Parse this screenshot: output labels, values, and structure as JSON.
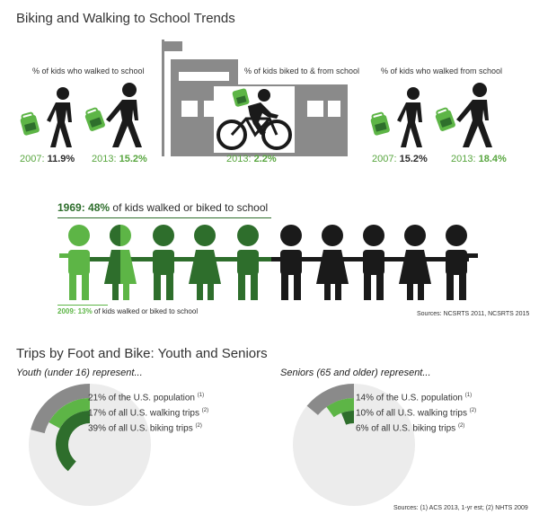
{
  "header": {
    "title": "Biking and Walking to School Trends"
  },
  "walked_to": {
    "label": "% of kids who walked to school",
    "y2007_label": "2007:",
    "y2007_value": "11.9%",
    "y2013_label": "2013:",
    "y2013_value": "15.2%"
  },
  "biked": {
    "label": "% of kids biked to & from school",
    "y2013_label": "2013:",
    "y2013_value": "2.2%"
  },
  "walked_from": {
    "label": "% of kids who walked from school",
    "y2007_label": "2007:",
    "y2007_value": "15.2%",
    "y2013_label": "2013:",
    "y2013_value": "18.4%"
  },
  "historic": {
    "y1969_label": "1969:",
    "y1969_value": "48%",
    "y1969_text": " of kids walked or biked to school",
    "y2009_label": "2009: 13%",
    "y2009_text": " of kids walked or biked to school",
    "sources": "Sources: NCSRTS 2011, NCSRTS 2015"
  },
  "trips": {
    "title": "Trips by Foot and Bike: Youth and Seniors",
    "youth": {
      "label": "Youth (under 16) represent...",
      "stats": [
        {
          "text": "21% of the U.S. population",
          "ref": "(1)"
        },
        {
          "text": "17% of all U.S. walking trips",
          "ref": "(2)"
        },
        {
          "text": "39% of all U.S. biking trips",
          "ref": "(2)"
        }
      ]
    },
    "seniors": {
      "label": "Seniors (65 and older) represent...",
      "stats": [
        {
          "text": "14% of the U.S. population",
          "ref": "(1)"
        },
        {
          "text": "10% of all U.S. walking trips",
          "ref": "(2)"
        },
        {
          "text": "6% of all U.S. biking trips",
          "ref": "(2)"
        }
      ]
    },
    "sources": "Sources: (1) ACS 2013, 1-yr est; (2) NHTS 2009"
  },
  "colors": {
    "dark_green": "#2e6e2c",
    "light_green": "#5db546",
    "gray": "#8a8a8a",
    "light_gray": "#ececec",
    "black": "#1a1a1a"
  }
}
